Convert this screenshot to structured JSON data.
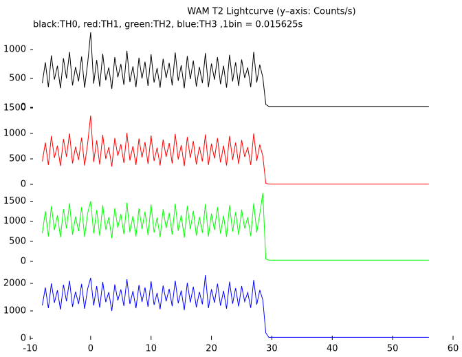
{
  "chart_data": {
    "type": "line",
    "title": "WAM T2 Lightcurve (y–axis: Counts/s)",
    "subtitle": "black:TH0, red:TH1, green:TH2, blue:TH3 ,1bin = 0.015625s",
    "xlim": [
      -10,
      60
    ],
    "xticks": [
      -10,
      0,
      10,
      20,
      30,
      40,
      50,
      60
    ],
    "x": [
      -8,
      -7.5,
      -7,
      -6.5,
      -6,
      -5.5,
      -5,
      -4.5,
      -4,
      -3.5,
      -3,
      -2.5,
      -2,
      -1.5,
      -1,
      -0.5,
      0,
      0.5,
      1,
      1.5,
      2,
      2.5,
      3,
      3.5,
      4,
      4.5,
      5,
      5.5,
      6,
      6.5,
      7,
      7.5,
      8,
      8.5,
      9,
      9.5,
      10,
      10.5,
      11,
      11.5,
      12,
      12.5,
      13,
      13.5,
      14,
      14.5,
      15,
      15.5,
      16,
      16.5,
      17,
      17.5,
      18,
      18.5,
      19,
      19.5,
      20,
      20.5,
      21,
      21.5,
      22,
      22.5,
      23,
      23.5,
      24,
      24.5,
      25,
      25.5,
      26,
      26.5,
      27,
      27.5,
      28,
      28.5,
      29,
      29.5,
      56
    ],
    "panels": [
      {
        "color": "#000000",
        "ylim": [
          0,
          1300
        ],
        "yticks": [
          0,
          500,
          1000
        ],
        "values": [
          420,
          780,
          350,
          900,
          480,
          720,
          330,
          850,
          500,
          960,
          380,
          700,
          450,
          880,
          340,
          760,
          1300,
          410,
          820,
          360,
          930,
          470,
          690,
          320,
          870,
          520,
          750,
          390,
          980,
          440,
          710,
          350,
          860,
          500,
          790,
          370,
          920,
          430,
          680,
          340,
          840,
          510,
          770,
          380,
          950,
          460,
          730,
          330,
          890,
          490,
          810,
          360,
          700,
          420,
          940,
          350,
          760,
          480,
          870,
          400,
          720,
          340,
          910,
          450,
          780,
          370,
          830,
          510,
          690,
          350,
          960,
          430,
          740,
          520,
          50,
          15,
          15
        ]
      },
      {
        "color": "#ff0000",
        "ylim": [
          0,
          1500
        ],
        "yticks": [
          0,
          500,
          1000,
          1500
        ],
        "values": [
          450,
          820,
          380,
          950,
          520,
          760,
          360,
          890,
          540,
          1000,
          410,
          740,
          480,
          920,
          370,
          800,
          1350,
          440,
          860,
          390,
          970,
          500,
          730,
          350,
          910,
          560,
          790,
          420,
          1010,
          470,
          750,
          380,
          900,
          530,
          830,
          400,
          960,
          460,
          720,
          370,
          880,
          540,
          810,
          410,
          990,
          490,
          770,
          360,
          930,
          520,
          850,
          390,
          740,
          450,
          980,
          380,
          800,
          510,
          910,
          430,
          760,
          370,
          950,
          480,
          820,
          400,
          870,
          540,
          730,
          380,
          1000,
          460,
          780,
          560,
          20,
          5,
          5
        ]
      },
      {
        "color": "#00ff00",
        "ylim": [
          0,
          1800
        ],
        "yticks": [
          0,
          500,
          1000,
          1500
        ],
        "values": [
          700,
          1250,
          620,
          1380,
          780,
          1150,
          600,
          1300,
          820,
          1450,
          660,
          1120,
          750,
          1350,
          610,
          1200,
          1500,
          700,
          1280,
          640,
          1400,
          790,
          1100,
          580,
          1330,
          840,
          1180,
          680,
          1460,
          730,
          1130,
          620,
          1320,
          810,
          1240,
          650,
          1420,
          720,
          1090,
          600,
          1300,
          830,
          1210,
          670,
          1440,
          760,
          1150,
          590,
          1380,
          800,
          1260,
          640,
          1110,
          710,
          1430,
          620,
          1190,
          780,
          1350,
          690,
          1140,
          610,
          1400,
          740,
          1230,
          660,
          1290,
          820,
          1100,
          630,
          1450,
          720,
          1180,
          1700,
          60,
          30,
          30
        ]
      },
      {
        "color": "#0000ff",
        "ylim": [
          0,
          2700
        ],
        "yticks": [
          0,
          1000,
          2000
        ],
        "values": [
          1200,
          1850,
          1100,
          2000,
          1300,
          1750,
          1050,
          1950,
          1350,
          2100,
          1150,
          1700,
          1250,
          1980,
          1080,
          1800,
          2200,
          1200,
          1900,
          1120,
          2050,
          1320,
          1680,
          1000,
          1960,
          1380,
          1780,
          1180,
          2150,
          1250,
          1720,
          1100,
          1940,
          1330,
          1850,
          1150,
          2080,
          1220,
          1650,
          1060,
          1920,
          1350,
          1800,
          1170,
          2100,
          1280,
          1740,
          1030,
          2020,
          1310,
          1880,
          1130,
          1690,
          1240,
          2300,
          1100,
          1790,
          1300,
          1990,
          1190,
          1730,
          1080,
          2060,
          1260,
          1830,
          1160,
          1900,
          1340,
          1670,
          1110,
          2120,
          1230,
          1760,
          1400,
          200,
          40,
          40
        ]
      }
    ]
  }
}
